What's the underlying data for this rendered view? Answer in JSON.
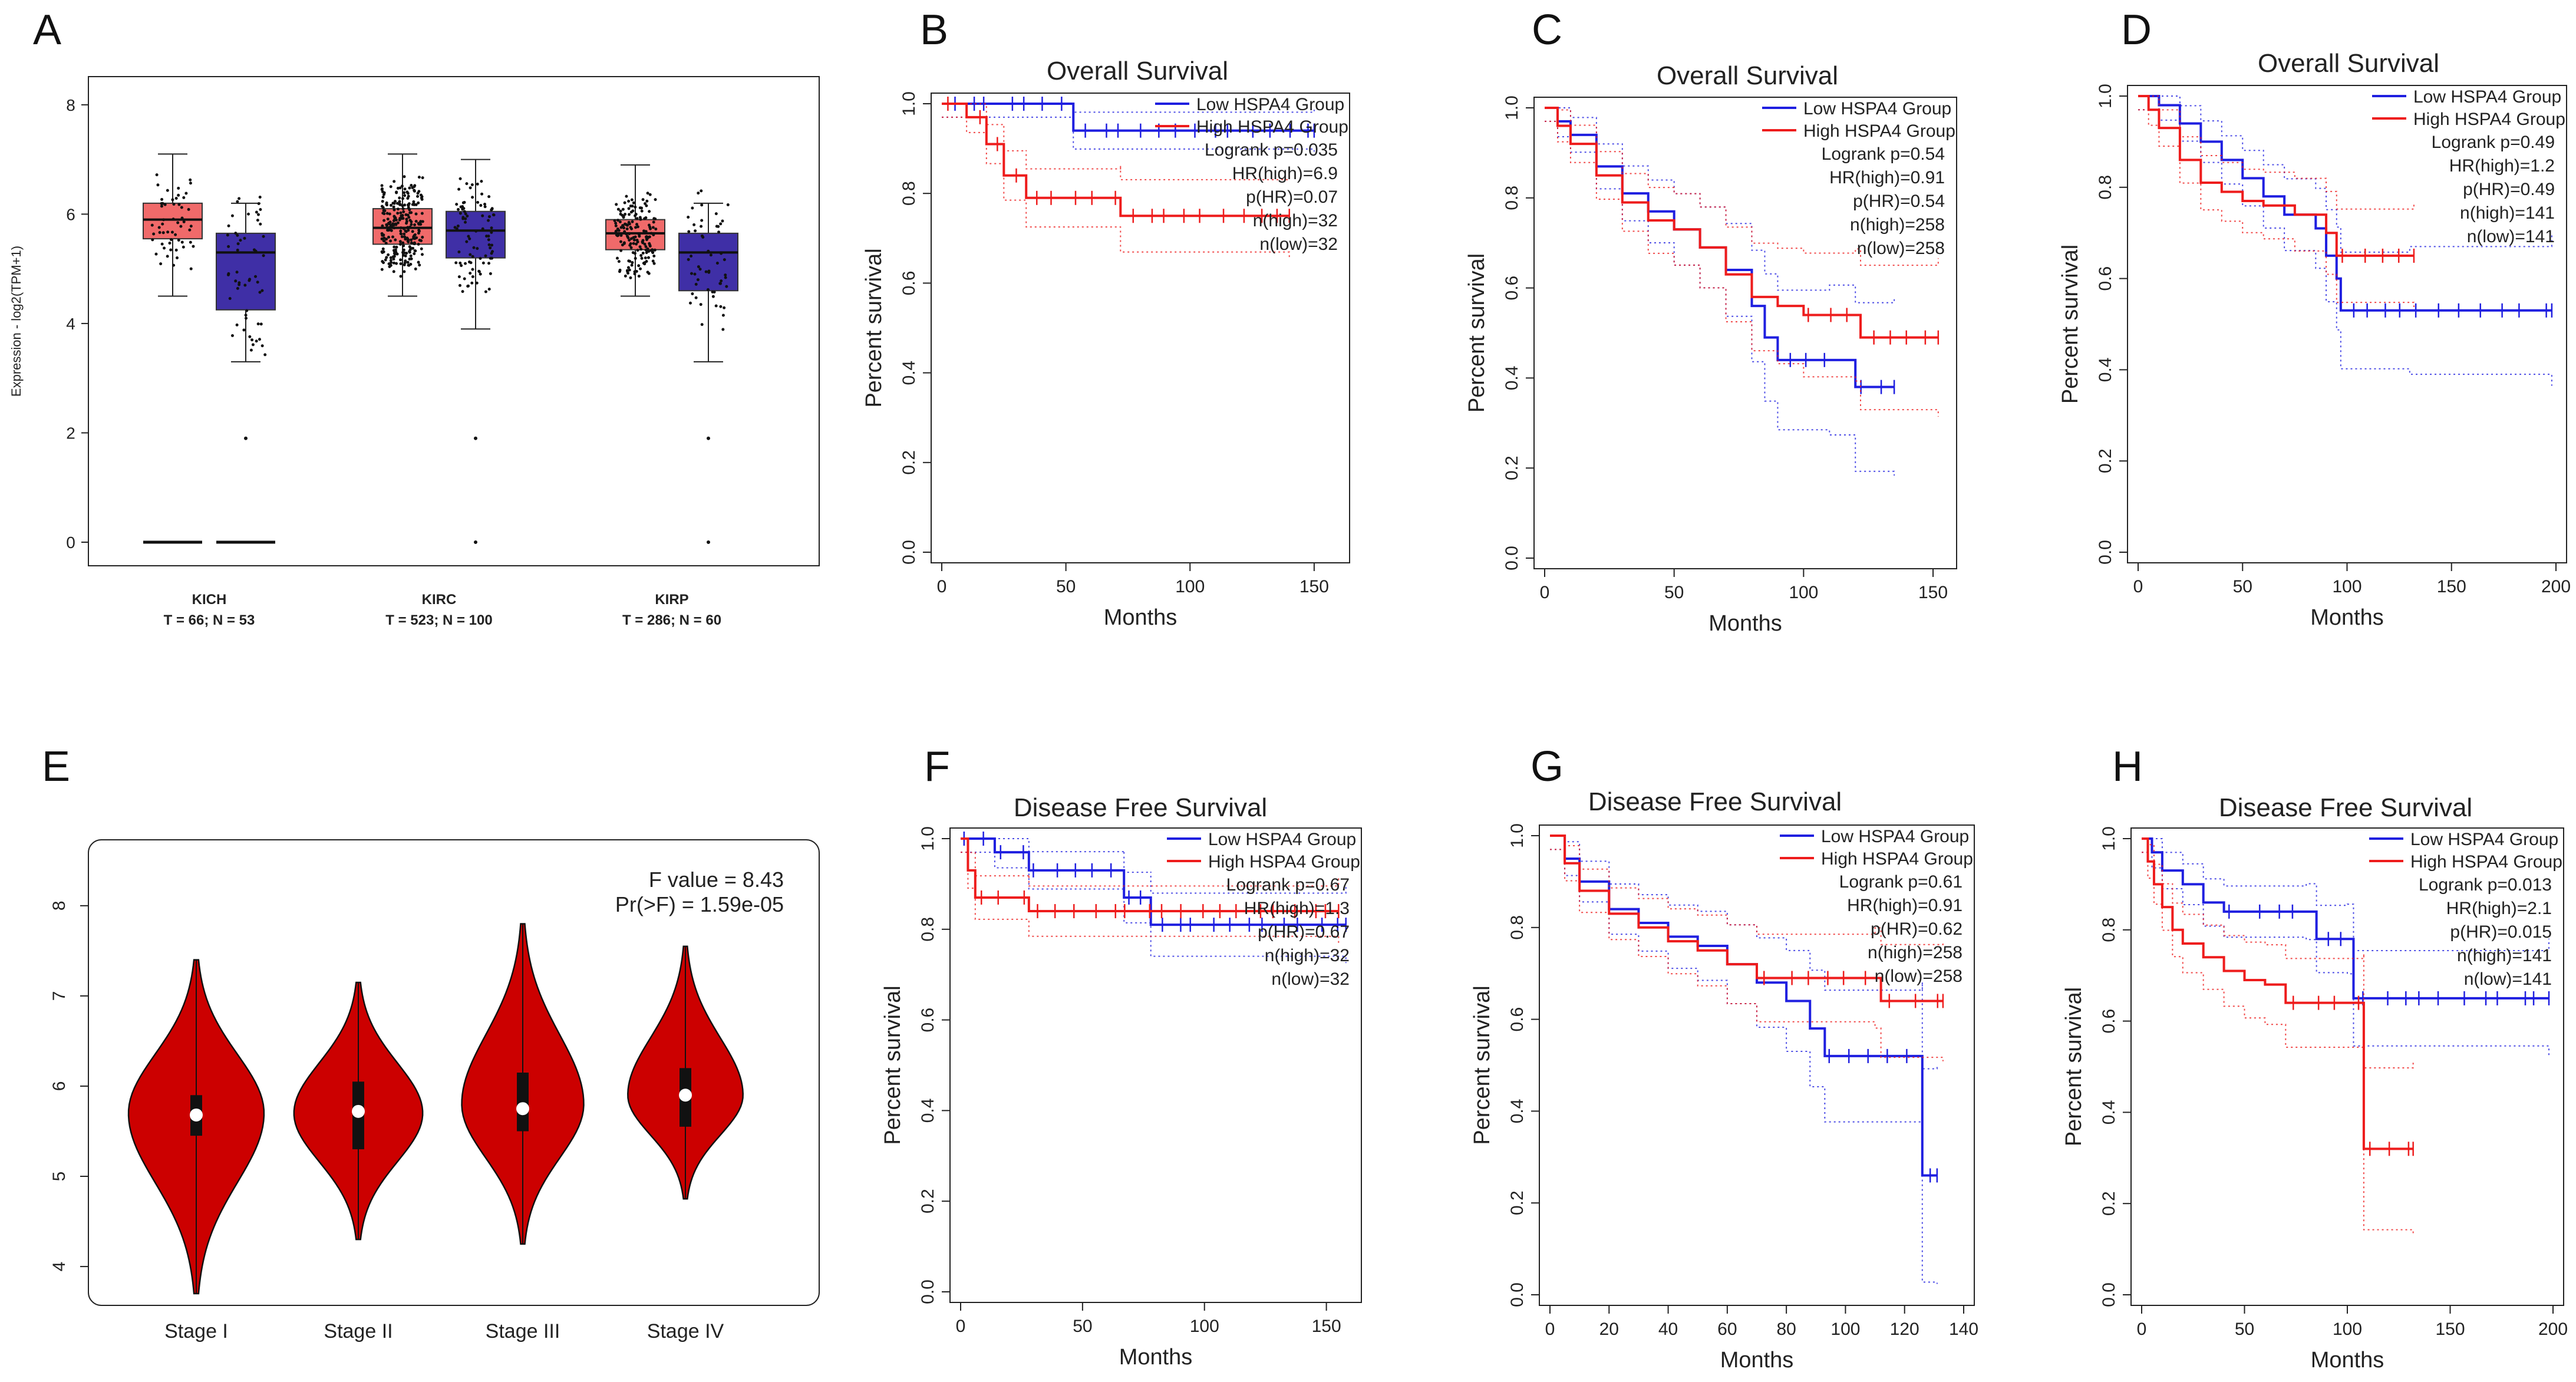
{
  "colors": {
    "low": "#1f1fe0",
    "high": "#ee1c1c",
    "tumor_box": "#f06a6a",
    "normal_box": "#3f2fa6",
    "violin": "#cc0000"
  },
  "figure": {
    "panel_labels": [
      "A",
      "B",
      "C",
      "D",
      "E",
      "F",
      "G",
      "H"
    ]
  },
  "chart_data": [
    {
      "panel": "A",
      "type": "box",
      "ylabel": "Expression - log2(TPM+1)",
      "ylim": [
        0,
        8.3
      ],
      "yticks": [
        "0",
        "2",
        "4",
        "6",
        "8"
      ],
      "groups": [
        {
          "name": "KICH",
          "subtitle": "T = 66; N = 53",
          "tumor": {
            "min": 4.5,
            "q1": 5.55,
            "median": 5.9,
            "q3": 6.2,
            "max": 7.1,
            "zero": true
          },
          "normal": {
            "min": 3.3,
            "q1": 4.25,
            "median": 5.3,
            "q3": 5.65,
            "max": 6.2,
            "zero": true
          }
        },
        {
          "name": "KIRC",
          "subtitle": "T = 523; N = 100",
          "tumor": {
            "min": 4.5,
            "q1": 5.45,
            "median": 5.75,
            "q3": 6.1,
            "max": 7.1
          },
          "normal": {
            "min": 3.9,
            "q1": 5.2,
            "median": 5.7,
            "q3": 6.05,
            "max": 7.0
          }
        },
        {
          "name": "KIRP",
          "subtitle": "T = 286; N = 60",
          "tumor": {
            "min": 4.5,
            "q1": 5.35,
            "median": 5.65,
            "q3": 5.9,
            "max": 6.9
          },
          "normal": {
            "min": 3.3,
            "q1": 4.6,
            "median": 5.3,
            "q3": 5.65,
            "max": 6.2
          }
        }
      ]
    },
    {
      "panel": "B",
      "type": "line",
      "title": "Overall Survival",
      "xlabel": "Months",
      "ylabel": "Percent survival",
      "xlim": [
        0,
        160
      ],
      "xticks": [
        "0",
        "50",
        "100",
        "150"
      ],
      "ylim": [
        0,
        1
      ],
      "yticks": [
        "0.0",
        "0.2",
        "0.4",
        "0.6",
        "0.8",
        "1.0"
      ],
      "legend": [
        "Low HSPA4 Group",
        "High HSPA4 Group"
      ],
      "stats": [
        "Logrank p=0.035",
        "HR(high)=6.9",
        "p(HR)=0.07",
        "n(high)=32",
        "n(low)=32"
      ],
      "series": [
        {
          "name": "Low",
          "steps": [
            [
              0,
              1
            ],
            [
              53,
              1
            ],
            [
              53,
              0.94
            ],
            [
              150,
              0.94
            ]
          ]
        },
        {
          "name": "High",
          "steps": [
            [
              0,
              1
            ],
            [
              10,
              1
            ],
            [
              10,
              0.97
            ],
            [
              18,
              0.97
            ],
            [
              18,
              0.91
            ],
            [
              25,
              0.91
            ],
            [
              25,
              0.84
            ],
            [
              34,
              0.84
            ],
            [
              34,
              0.79
            ],
            [
              72,
              0.79
            ],
            [
              72,
              0.75
            ],
            [
              140,
              0.75
            ]
          ]
        }
      ]
    },
    {
      "panel": "C",
      "type": "line",
      "title": "Overall Survival",
      "xlabel": "Months",
      "ylabel": "Percent survival",
      "xlim": [
        0,
        155
      ],
      "xticks": [
        "0",
        "50",
        "100",
        "150"
      ],
      "ylim": [
        0,
        1
      ],
      "yticks": [
        "0.0",
        "0.2",
        "0.4",
        "0.6",
        "0.8",
        "1.0"
      ],
      "legend": [
        "Low HSPA4 Group",
        "High HSPA4 Group"
      ],
      "stats": [
        "Logrank p=0.54",
        "HR(high)=0.91",
        "p(HR)=0.54",
        "n(high)=258",
        "n(low)=258"
      ],
      "series": [
        {
          "name": "Low",
          "steps": [
            [
              0,
              1
            ],
            [
              5,
              0.97
            ],
            [
              10,
              0.94
            ],
            [
              20,
              0.87
            ],
            [
              30,
              0.81
            ],
            [
              40,
              0.77
            ],
            [
              50,
              0.73
            ],
            [
              60,
              0.69
            ],
            [
              70,
              0.64
            ],
            [
              80,
              0.56
            ],
            [
              85,
              0.49
            ],
            [
              90,
              0.44
            ],
            [
              110,
              0.44
            ],
            [
              120,
              0.38
            ],
            [
              135,
              0.38
            ]
          ]
        },
        {
          "name": "High",
          "steps": [
            [
              0,
              1
            ],
            [
              5,
              0.96
            ],
            [
              10,
              0.92
            ],
            [
              20,
              0.85
            ],
            [
              30,
              0.79
            ],
            [
              40,
              0.75
            ],
            [
              50,
              0.73
            ],
            [
              60,
              0.69
            ],
            [
              70,
              0.63
            ],
            [
              80,
              0.58
            ],
            [
              90,
              0.56
            ],
            [
              100,
              0.54
            ],
            [
              120,
              0.54
            ],
            [
              122,
              0.49
            ],
            [
              152,
              0.49
            ]
          ]
        }
      ]
    },
    {
      "panel": "D",
      "type": "line",
      "title": "Overall Survival",
      "xlabel": "Months",
      "ylabel": "Percent survival",
      "xlim": [
        0,
        200
      ],
      "xticks": [
        "0",
        "50",
        "100",
        "150",
        "200"
      ],
      "ylim": [
        0,
        1
      ],
      "yticks": [
        "0.0",
        "0.2",
        "0.4",
        "0.6",
        "0.8",
        "1.0"
      ],
      "legend": [
        "Low HSPA4 Group",
        "High HSPA4 Group"
      ],
      "stats": [
        "Logrank p=0.49",
        "HR(high)=1.2",
        "p(HR)=0.49",
        "n(high)=141",
        "n(low)=141"
      ],
      "series": [
        {
          "name": "Low",
          "steps": [
            [
              0,
              1
            ],
            [
              10,
              0.98
            ],
            [
              20,
              0.94
            ],
            [
              30,
              0.9
            ],
            [
              40,
              0.86
            ],
            [
              50,
              0.82
            ],
            [
              60,
              0.78
            ],
            [
              70,
              0.74
            ],
            [
              85,
              0.71
            ],
            [
              90,
              0.65
            ],
            [
              95,
              0.6
            ],
            [
              97,
              0.53
            ],
            [
              130,
              0.53
            ],
            [
              198,
              0.53
            ]
          ]
        },
        {
          "name": "High",
          "steps": [
            [
              0,
              1
            ],
            [
              5,
              0.97
            ],
            [
              10,
              0.93
            ],
            [
              20,
              0.86
            ],
            [
              30,
              0.81
            ],
            [
              40,
              0.79
            ],
            [
              50,
              0.77
            ],
            [
              60,
              0.76
            ],
            [
              75,
              0.74
            ],
            [
              90,
              0.7
            ],
            [
              95,
              0.65
            ],
            [
              132,
              0.65
            ]
          ]
        }
      ]
    },
    {
      "panel": "E",
      "type": "violin",
      "ylim": [
        3.7,
        8.6
      ],
      "yticks": [
        "4",
        "5",
        "6",
        "7",
        "8"
      ],
      "categories": [
        "Stage I",
        "Stage II",
        "Stage III",
        "Stage IV"
      ],
      "stats": [
        "F value = 8.43",
        "Pr(>F) = 1.59e-05"
      ],
      "violins": [
        {
          "min": 3.7,
          "max": 7.4,
          "q1": 5.45,
          "median": 5.68,
          "q3": 5.9,
          "mode": 5.7,
          "width": 1.0
        },
        {
          "min": 4.3,
          "max": 7.15,
          "q1": 5.3,
          "median": 5.72,
          "q3": 6.05,
          "mode": 5.7,
          "width": 0.95
        },
        {
          "min": 4.25,
          "max": 7.8,
          "q1": 5.5,
          "median": 5.75,
          "q3": 6.15,
          "mode": 5.8,
          "width": 0.9
        },
        {
          "min": 4.75,
          "max": 7.55,
          "q1": 5.55,
          "median": 5.9,
          "q3": 6.2,
          "mode": 5.9,
          "width": 0.85
        }
      ]
    },
    {
      "panel": "F",
      "type": "line",
      "title": "Disease Free Survival",
      "xlabel": "Months",
      "ylabel": "Percent survival",
      "xlim": [
        0,
        160
      ],
      "xticks": [
        "0",
        "50",
        "100",
        "150"
      ],
      "ylim": [
        0,
        1
      ],
      "yticks": [
        "0.0",
        "0.2",
        "0.4",
        "0.6",
        "0.8",
        "1.0"
      ],
      "legend": [
        "Low HSPA4 Group",
        "High HSPA4 Group"
      ],
      "stats": [
        "Logrank p=0.67",
        "HR(high)=1.3",
        "p(HR)=0.67",
        "n(high)=32",
        "n(low)=32"
      ],
      "series": [
        {
          "name": "Low",
          "steps": [
            [
              0,
              1
            ],
            [
              14,
              1
            ],
            [
              14,
              0.97
            ],
            [
              28,
              0.97
            ],
            [
              28,
              0.93
            ],
            [
              67,
              0.93
            ],
            [
              67,
              0.87
            ],
            [
              78,
              0.87
            ],
            [
              78,
              0.81
            ],
            [
              158,
              0.81
            ]
          ]
        },
        {
          "name": "High",
          "steps": [
            [
              0,
              1
            ],
            [
              3,
              0.93
            ],
            [
              6,
              0.87
            ],
            [
              28,
              0.87
            ],
            [
              28,
              0.84
            ],
            [
              155,
              0.84
            ]
          ]
        }
      ]
    },
    {
      "panel": "G",
      "type": "line",
      "title": "Disease Free Survival",
      "xlabel": "Months",
      "ylabel": "Percent survival",
      "xlim": [
        0,
        140
      ],
      "xticks": [
        "0",
        "20",
        "40",
        "60",
        "80",
        "100",
        "120",
        "140"
      ],
      "ylim": [
        0,
        1
      ],
      "yticks": [
        "0.0",
        "0.2",
        "0.4",
        "0.6",
        "0.8",
        "1.0"
      ],
      "legend": [
        "Low HSPA4 Group",
        "High HSPA4 Group"
      ],
      "stats": [
        "Logrank p=0.61",
        "HR(high)=0.91",
        "p(HR)=0.62",
        "n(high)=258",
        "n(low)=258"
      ],
      "series": [
        {
          "name": "Low",
          "steps": [
            [
              0,
              1
            ],
            [
              5,
              0.95
            ],
            [
              10,
              0.9
            ],
            [
              20,
              0.84
            ],
            [
              30,
              0.81
            ],
            [
              40,
              0.78
            ],
            [
              50,
              0.76
            ],
            [
              60,
              0.72
            ],
            [
              70,
              0.68
            ],
            [
              80,
              0.64
            ],
            [
              88,
              0.58
            ],
            [
              93,
              0.52
            ],
            [
              126,
              0.52
            ],
            [
              126,
              0.26
            ],
            [
              131,
              0.26
            ]
          ]
        },
        {
          "name": "High",
          "steps": [
            [
              0,
              1
            ],
            [
              5,
              0.94
            ],
            [
              10,
              0.88
            ],
            [
              20,
              0.83
            ],
            [
              30,
              0.8
            ],
            [
              40,
              0.77
            ],
            [
              50,
              0.75
            ],
            [
              60,
              0.72
            ],
            [
              70,
              0.69
            ],
            [
              110,
              0.69
            ],
            [
              112,
              0.64
            ],
            [
              133,
              0.64
            ]
          ]
        }
      ]
    },
    {
      "panel": "H",
      "type": "line",
      "title": "Disease Free Survival",
      "xlabel": "Months",
      "ylabel": "Percent survival",
      "xlim": [
        0,
        200
      ],
      "xticks": [
        "0",
        "50",
        "100",
        "150",
        "200"
      ],
      "ylim": [
        0,
        1
      ],
      "yticks": [
        "0.0",
        "0.2",
        "0.4",
        "0.6",
        "0.8",
        "1.0"
      ],
      "legend": [
        "Low HSPA4 Group",
        "High HSPA4 Group"
      ],
      "stats": [
        "Logrank p=0.013",
        "HR(high)=2.1",
        "p(HR)=0.015",
        "n(high)=141",
        "n(low)=141"
      ],
      "series": [
        {
          "name": "Low",
          "steps": [
            [
              0,
              1
            ],
            [
              5,
              0.97
            ],
            [
              10,
              0.93
            ],
            [
              20,
              0.9
            ],
            [
              30,
              0.86
            ],
            [
              40,
              0.84
            ],
            [
              80,
              0.84
            ],
            [
              85,
              0.78
            ],
            [
              100,
              0.78
            ],
            [
              103,
              0.65
            ],
            [
              198,
              0.65
            ]
          ]
        },
        {
          "name": "High",
          "steps": [
            [
              0,
              1
            ],
            [
              3,
              0.95
            ],
            [
              6,
              0.9
            ],
            [
              10,
              0.85
            ],
            [
              15,
              0.8
            ],
            [
              20,
              0.77
            ],
            [
              30,
              0.74
            ],
            [
              40,
              0.71
            ],
            [
              50,
              0.69
            ],
            [
              60,
              0.68
            ],
            [
              70,
              0.64
            ],
            [
              108,
              0.64
            ],
            [
              108,
              0.32
            ],
            [
              132,
              0.32
            ]
          ]
        }
      ]
    }
  ]
}
